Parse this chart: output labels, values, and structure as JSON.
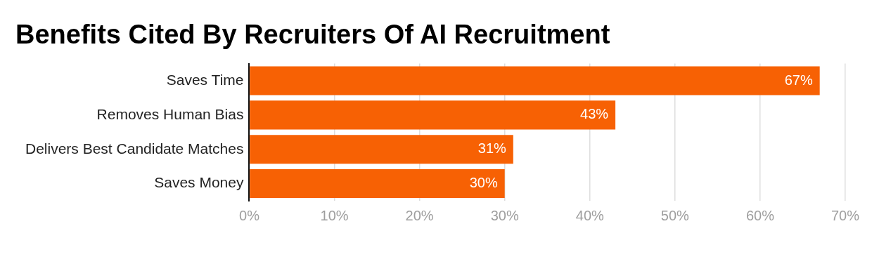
{
  "chart_data": {
    "type": "bar",
    "orientation": "horizontal",
    "title": "Benefits Cited By Recruiters Of AI Recruitment",
    "categories": [
      "Saves Time",
      "Removes Human Bias",
      "Delivers Best Candidate Matches",
      "Saves Money"
    ],
    "values": [
      67,
      43,
      31,
      30
    ],
    "value_labels": [
      "67%",
      "43%",
      "31%",
      "30%"
    ],
    "color": "#f76104",
    "xlim": [
      0,
      70
    ],
    "xticks": [
      {
        "value": 0,
        "label": "0%"
      },
      {
        "value": 10,
        "label": "10%"
      },
      {
        "value": 20,
        "label": "20%"
      },
      {
        "value": 30,
        "label": "30%"
      },
      {
        "value": 40,
        "label": "40%"
      },
      {
        "value": 50,
        "label": "50%"
      },
      {
        "value": 60,
        "label": "60%"
      },
      {
        "value": 70,
        "label": "70%"
      }
    ],
    "grid": "x"
  }
}
